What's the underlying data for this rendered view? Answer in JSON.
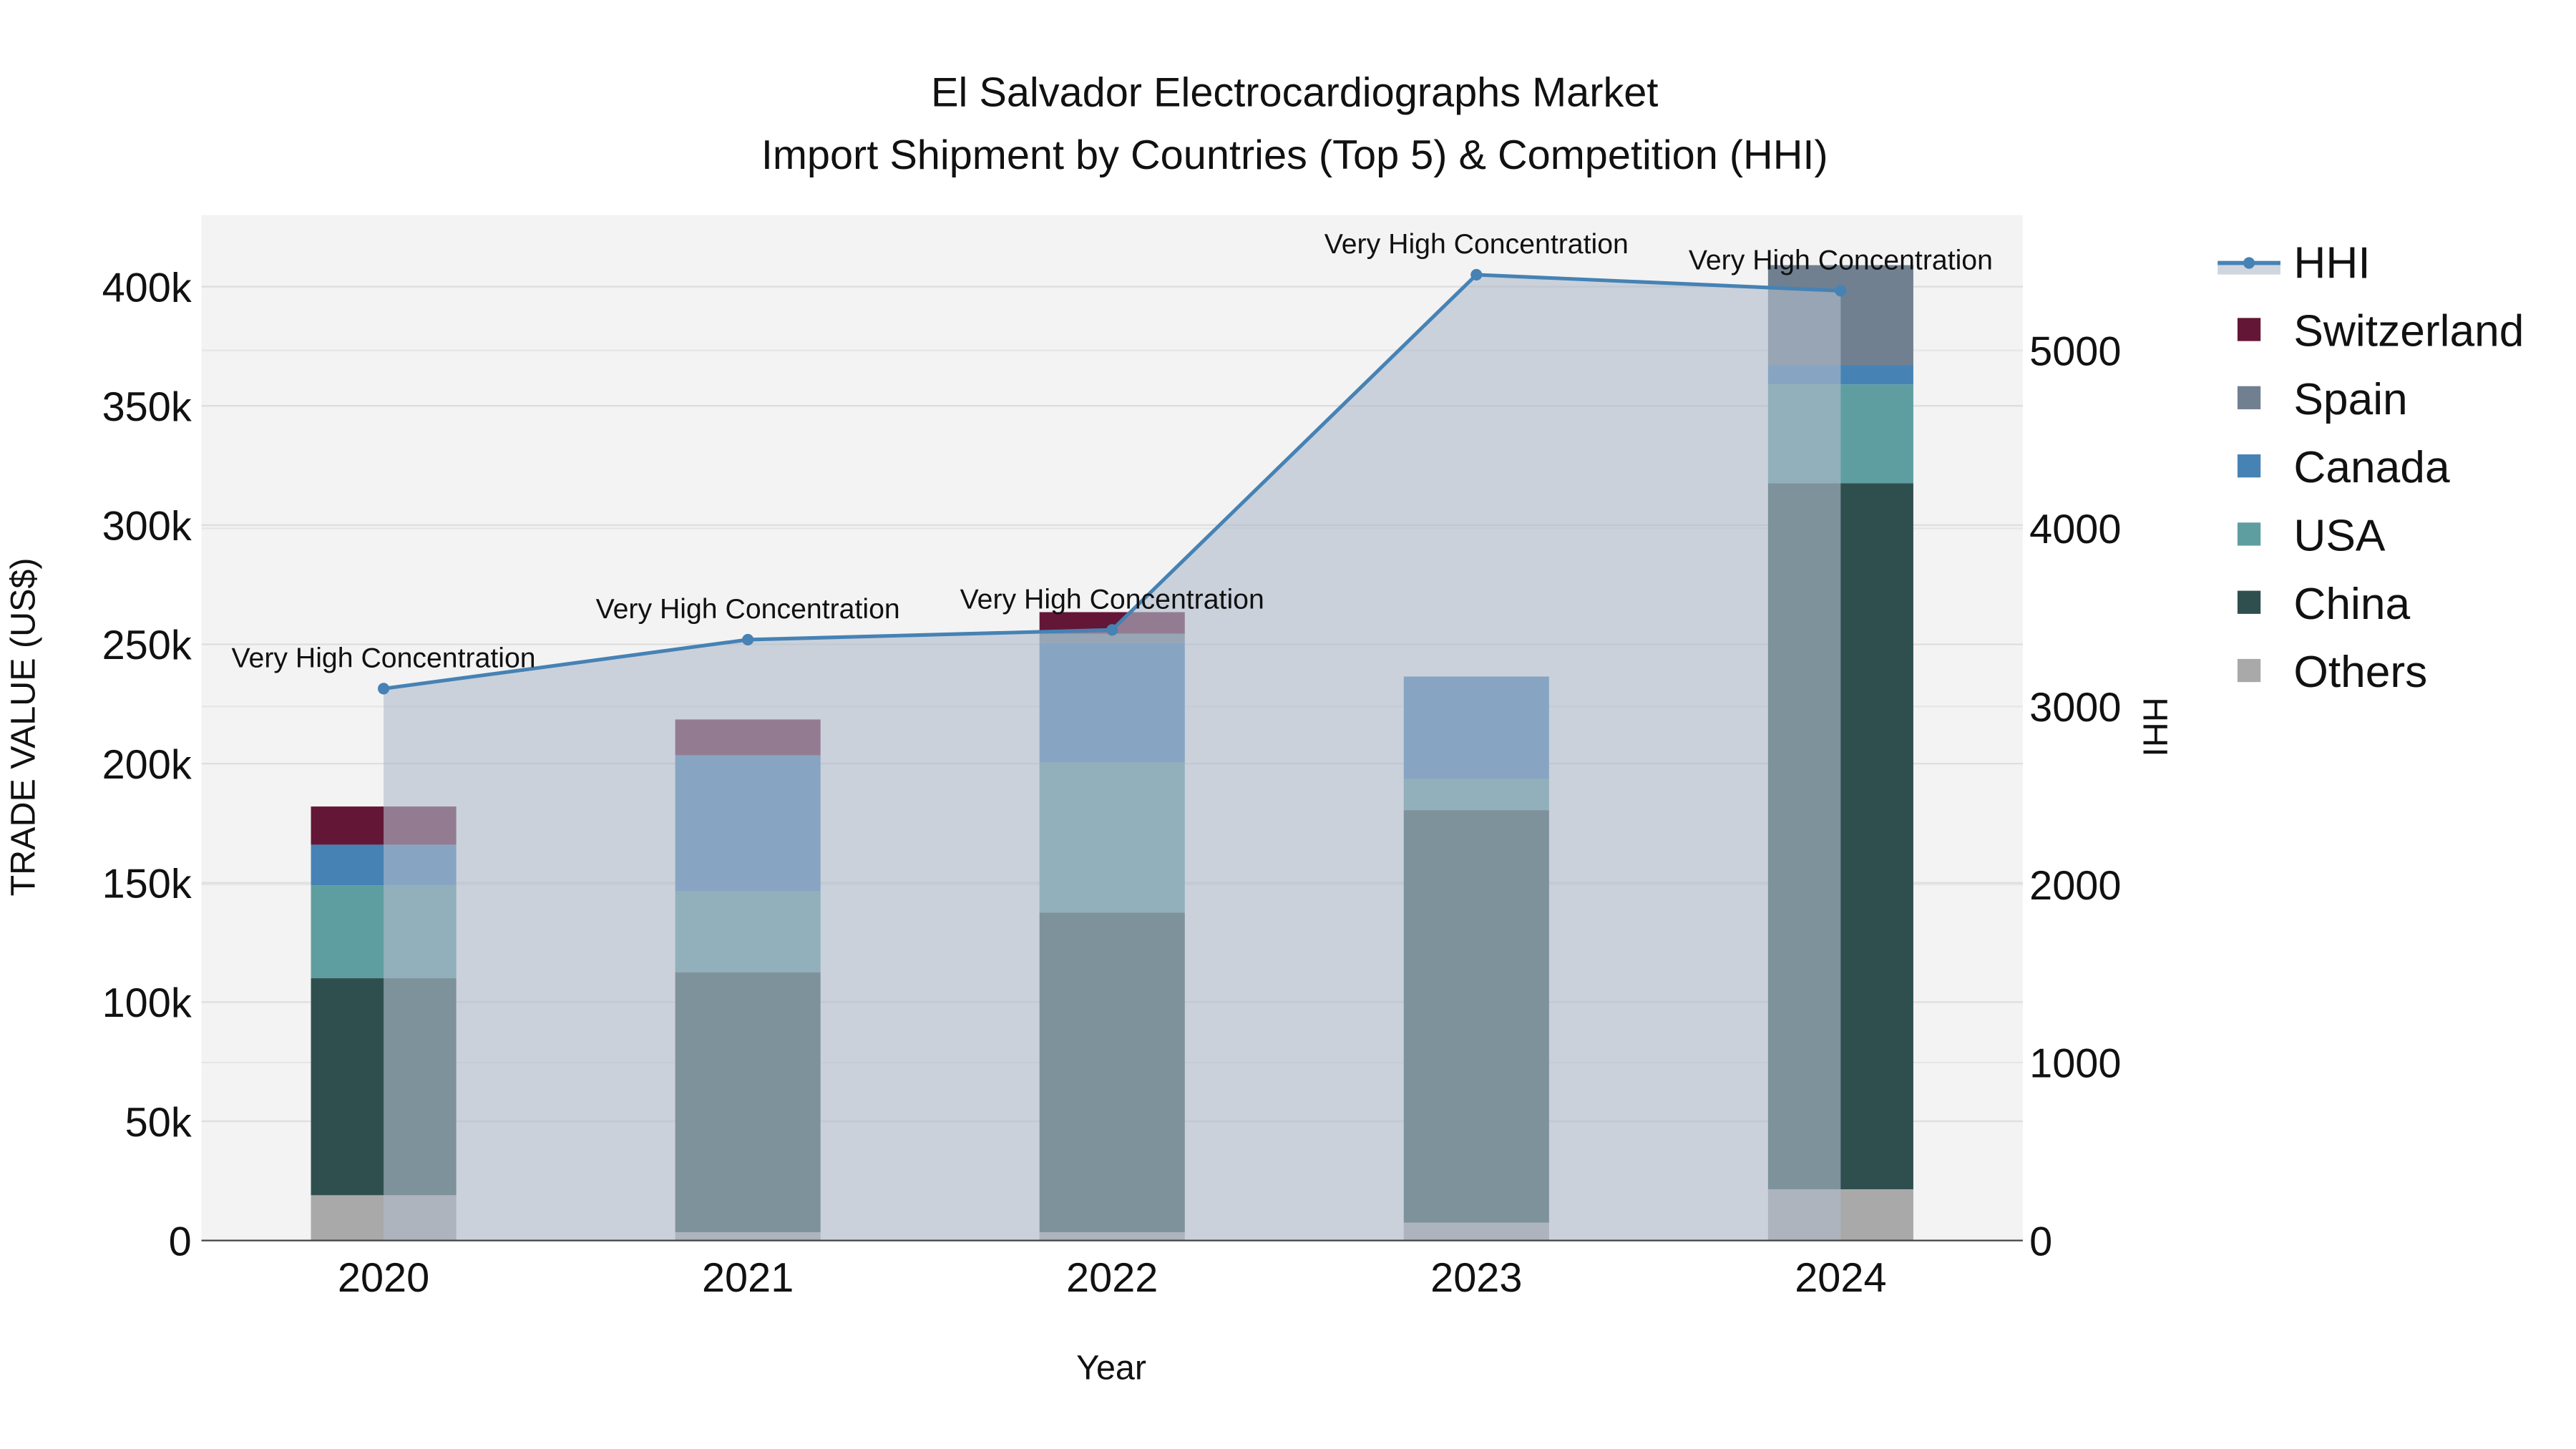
{
  "chart_data": {
    "type": "bar",
    "title": "El Salvador Electrocardiographs Market",
    "subtitle": "Import Shipment by Countries (Top 5) & Competition (HHI)",
    "xlabel": "Year",
    "ylabel": "TRADE VALUE (US$)",
    "y2label": "HHI",
    "categories": [
      "2020",
      "2021",
      "2022",
      "2023",
      "2024"
    ],
    "ylim": [
      0,
      430000
    ],
    "y2lim": [
      0,
      5760
    ],
    "yticks": [
      0,
      50000,
      100000,
      150000,
      200000,
      250000,
      300000,
      350000,
      400000
    ],
    "ytick_labels": [
      "0",
      "50k",
      "100k",
      "150k",
      "200k",
      "250k",
      "300k",
      "350k",
      "400k"
    ],
    "y2ticks": [
      0,
      1000,
      2000,
      3000,
      4000,
      5000
    ],
    "y2tick_labels": [
      "0",
      "1000",
      "2000",
      "3000",
      "4000",
      "5000"
    ],
    "stacked": true,
    "grid": true,
    "legend_position": "right",
    "series": [
      {
        "name": "Others",
        "color": "#a9a9a9",
        "values": [
          19000,
          3500,
          3500,
          7500,
          21500
        ]
      },
      {
        "name": "China",
        "color": "#2f4f4f",
        "values": [
          91000,
          109000,
          134000,
          173000,
          296000
        ]
      },
      {
        "name": "USA",
        "color": "#5f9ea0",
        "values": [
          39000,
          34000,
          63000,
          13000,
          41500
        ]
      },
      {
        "name": "Canada",
        "color": "#4682b4",
        "values": [
          17000,
          57000,
          50000,
          43000,
          8000
        ]
      },
      {
        "name": "Spain",
        "color": "#708090",
        "values": [
          0,
          0,
          4000,
          0,
          42000
        ]
      },
      {
        "name": "Switzerland",
        "color": "#641636",
        "values": [
          16000,
          15000,
          9000,
          0,
          0
        ]
      }
    ],
    "hhi": {
      "name": "HHI",
      "color": "#4682b4",
      "values": [
        3100,
        3375,
        3430,
        5425,
        5335
      ],
      "annotations": [
        "Very High Concentration",
        "Very High Concentration",
        "Very High Concentration",
        "Very High Concentration",
        "Very High Concentration"
      ]
    },
    "legend": [
      "HHI",
      "Switzerland",
      "Spain",
      "Canada",
      "USA",
      "China",
      "Others"
    ]
  }
}
